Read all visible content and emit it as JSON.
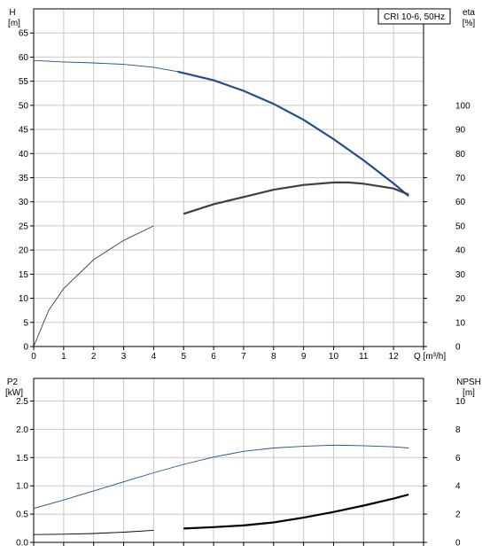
{
  "chart_data": [
    {
      "type": "line",
      "legend_text": "CRI 10-6, 50Hz",
      "legend_placement": "top-right",
      "grid": true,
      "xlabel": "Q [m³/h]",
      "xlim": [
        0,
        13
      ],
      "xticks": [
        0,
        1,
        2,
        3,
        4,
        5,
        6,
        7,
        8,
        9,
        10,
        11,
        12
      ],
      "left_axis": {
        "label_top": "H",
        "label_unit": "[m]",
        "ylim": [
          0,
          70
        ],
        "ticks": [
          0,
          5,
          10,
          15,
          20,
          25,
          30,
          35,
          40,
          45,
          50,
          55,
          60,
          65
        ]
      },
      "right_axis": {
        "label_top": "eta",
        "label_unit": "[%]",
        "ylim": [
          0,
          140
        ],
        "ticks": [
          0,
          10,
          20,
          30,
          40,
          50,
          60,
          70,
          80,
          90,
          100
        ]
      },
      "series": [
        {
          "axis": "left",
          "color": "#1f4e8c",
          "bold_from": 4.8,
          "x": [
            0,
            1,
            2,
            3,
            4,
            4.8,
            6,
            7,
            8,
            9,
            10,
            11,
            12,
            12.5
          ],
          "values": [
            59.3,
            59.0,
            58.8,
            58.5,
            57.9,
            57.0,
            55.2,
            53.0,
            50.3,
            47.0,
            43.0,
            38.6,
            33.8,
            31.2
          ]
        },
        {
          "axis": "right",
          "color": "#404040",
          "bold_from": 4.8,
          "x": [
            0,
            0.5,
            1,
            2,
            3,
            4,
            5,
            6,
            7,
            8,
            9,
            10,
            10.5,
            11,
            12,
            12.5
          ],
          "values": [
            0,
            15,
            24,
            36,
            44,
            50,
            55,
            59,
            62,
            65,
            67,
            68,
            68,
            67.5,
            65.5,
            63
          ]
        }
      ]
    },
    {
      "type": "line",
      "grid": true,
      "xlim": [
        0,
        13
      ],
      "left_axis": {
        "label_top": "P2",
        "label_unit": "[kW]",
        "ylim": [
          0,
          2.9
        ],
        "ticks": [
          0.0,
          0.5,
          1.0,
          1.5,
          2.0,
          2.5
        ]
      },
      "right_axis": {
        "label_top": "NPSH",
        "label_unit": "[m]",
        "ylim": [
          0,
          11.6
        ],
        "ticks": [
          0,
          2,
          4,
          6,
          8,
          10
        ]
      },
      "series": [
        {
          "axis": "left",
          "color": "#1f4e8c",
          "bold_from": 13,
          "x": [
            0,
            1,
            2,
            3,
            4,
            5,
            6,
            7,
            8,
            9,
            10,
            11,
            12,
            12.5
          ],
          "values": [
            0.6,
            0.75,
            0.91,
            1.07,
            1.23,
            1.38,
            1.51,
            1.61,
            1.67,
            1.7,
            1.72,
            1.71,
            1.69,
            1.67
          ]
        },
        {
          "axis": "right",
          "color": "#000000",
          "bold_from": 4.8,
          "x": [
            0,
            1,
            2,
            3,
            4,
            5,
            6,
            7,
            8,
            9,
            10,
            11,
            12,
            12.5
          ],
          "values": [
            0.55,
            0.58,
            0.63,
            0.72,
            0.85,
            0.98,
            1.08,
            1.2,
            1.41,
            1.75,
            2.15,
            2.6,
            3.1,
            3.38
          ]
        }
      ]
    }
  ]
}
